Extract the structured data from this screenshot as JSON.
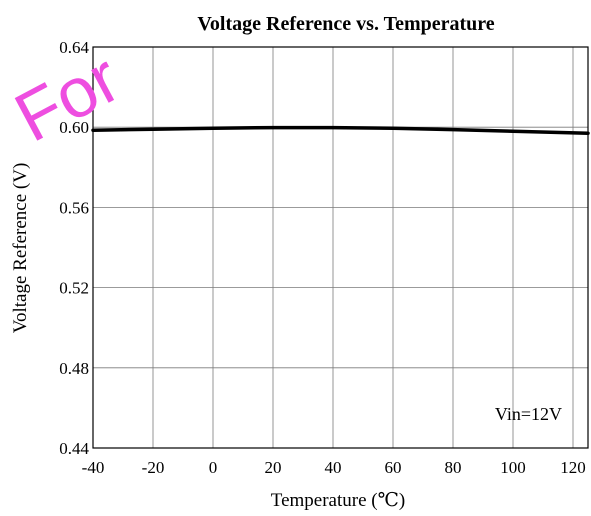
{
  "chart_data": {
    "type": "line",
    "title": "Voltage Reference vs. Temperature",
    "xlabel": "Temperature (℃)",
    "ylabel": "Voltage Reference (V)",
    "xlim": [
      -40,
      125
    ],
    "ylim": [
      0.44,
      0.64
    ],
    "x_ticks": [
      -40,
      -20,
      0,
      20,
      40,
      60,
      80,
      100,
      120
    ],
    "x_tick_labels": [
      "-40",
      "-20",
      "0",
      "20",
      "40",
      "60",
      "80",
      "100",
      "120"
    ],
    "y_ticks": [
      0.44,
      0.48,
      0.52,
      0.56,
      0.6,
      0.64
    ],
    "y_tick_labels": [
      "0.44",
      "0.48",
      "0.52",
      "0.56",
      "0.60",
      "0.64"
    ],
    "grid": true,
    "annotation": "Vin=12V",
    "series": [
      {
        "x": [
          -40,
          -20,
          0,
          20,
          40,
          60,
          80,
          100,
          125
        ],
        "y": [
          0.5985,
          0.599,
          0.5995,
          0.5998,
          0.5998,
          0.5995,
          0.5988,
          0.598,
          0.597
        ]
      }
    ],
    "line_color": "#000000",
    "watermark": "For",
    "watermark_color": "#ee4ee0"
  }
}
